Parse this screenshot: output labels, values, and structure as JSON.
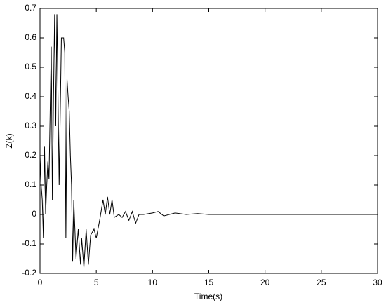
{
  "chart_data": {
    "type": "line",
    "xlabel": "Time(s)",
    "ylabel": "Z(k)",
    "x": [
      0,
      0.1,
      0.2,
      0.3,
      0.4,
      0.5,
      0.6,
      0.7,
      0.8,
      0.9,
      1.0,
      1.1,
      1.2,
      1.3,
      1.4,
      1.5,
      1.6,
      1.7,
      1.8,
      1.9,
      2.0,
      2.1,
      2.2,
      2.3,
      2.4,
      2.5,
      2.6,
      2.7,
      2.8,
      2.9,
      3.0,
      3.2,
      3.4,
      3.6,
      3.7,
      3.9,
      4.1,
      4.3,
      4.5,
      4.8,
      5.0,
      5.3,
      5.6,
      5.8,
      6.0,
      6.2,
      6.4,
      6.6,
      7.0,
      7.3,
      7.6,
      7.9,
      8.2,
      8.5,
      8.8,
      9.2,
      10,
      10.5,
      11,
      12,
      13,
      14,
      15,
      30
    ],
    "series": [
      {
        "name": "Z(k)",
        "color": "#000000",
        "values": [
          0.2,
          0.1,
          0.05,
          -0.08,
          0.23,
          0.0,
          0.1,
          0.18,
          0.12,
          0.35,
          0.57,
          0.05,
          0.4,
          0.68,
          0.3,
          0.68,
          0.4,
          0.1,
          0.35,
          0.6,
          0.6,
          0.6,
          0.55,
          -0.08,
          0.46,
          0.4,
          0.35,
          0.2,
          0.1,
          -0.16,
          0.05,
          -0.15,
          -0.05,
          -0.17,
          -0.08,
          -0.18,
          -0.05,
          -0.17,
          -0.07,
          -0.05,
          -0.08,
          -0.02,
          0.05,
          0.0,
          0.06,
          0.0,
          0.05,
          -0.01,
          0.0,
          -0.01,
          0.01,
          -0.02,
          0.01,
          -0.03,
          0.0,
          0.0,
          0.005,
          0.01,
          -0.005,
          0.005,
          0,
          0.003,
          0,
          0
        ]
      }
    ],
    "xlim": [
      0,
      30
    ],
    "xticks": [
      0,
      5,
      10,
      15,
      20,
      25,
      30
    ],
    "ylim": [
      -0.2,
      0.7
    ],
    "yticks": [
      -0.2,
      -0.1,
      0,
      0.1,
      0.2,
      0.3,
      0.4,
      0.5,
      0.6,
      0.7
    ]
  }
}
